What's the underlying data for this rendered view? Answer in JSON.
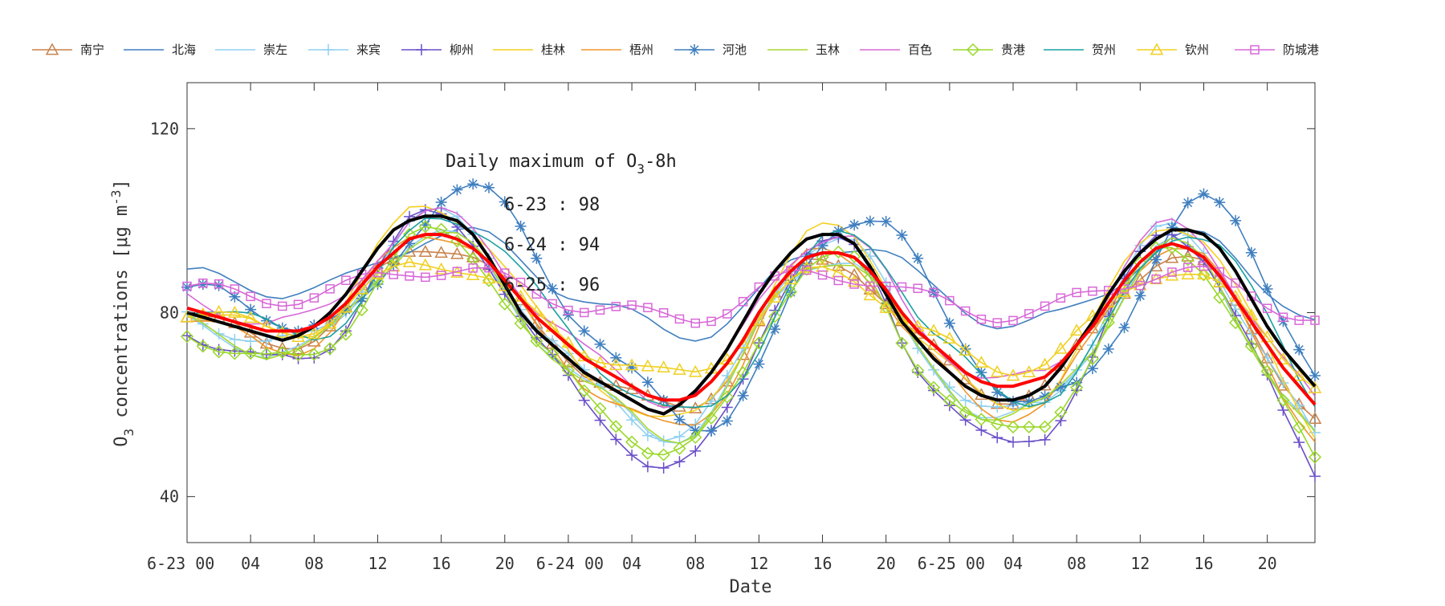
{
  "chart_data": {
    "type": "line",
    "xlabel": "Date",
    "ylabel": "O3 concentrations [μg m-3]",
    "ylabel_parts": {
      "o": "O",
      "sub": "3",
      "main": " concentrations [",
      "mu": "μ",
      "unit": "g m",
      "sup": "-3",
      "close": "]"
    },
    "xlim": [
      0,
      71
    ],
    "ylim": [
      30,
      130
    ],
    "yticks": [
      40,
      80,
      120
    ],
    "yticklabels": [
      "40",
      "80",
      "120"
    ],
    "xticks": [
      0,
      4,
      8,
      12,
      16,
      20,
      24,
      28,
      32,
      36,
      40,
      44,
      48,
      52,
      56,
      60,
      64,
      68,
      72
    ],
    "xtick_labels": [
      {
        "x": 0,
        "label": "6-23 00"
      },
      {
        "x": 4,
        "label": "04"
      },
      {
        "x": 8,
        "label": "08"
      },
      {
        "x": 12,
        "label": "12"
      },
      {
        "x": 16,
        "label": "16"
      },
      {
        "x": 20,
        "label": "20"
      },
      {
        "x": 24,
        "label": "6-24 00"
      },
      {
        "x": 28,
        "label": "04"
      },
      {
        "x": 32,
        "label": "08"
      },
      {
        "x": 36,
        "label": "12"
      },
      {
        "x": 40,
        "label": "16"
      },
      {
        "x": 44,
        "label": "20"
      },
      {
        "x": 48,
        "label": "6-25 00"
      },
      {
        "x": 52,
        "label": "04"
      },
      {
        "x": 56,
        "label": "08"
      },
      {
        "x": 60,
        "label": "12"
      },
      {
        "x": 64,
        "label": "16"
      },
      {
        "x": 68,
        "label": "20"
      }
    ],
    "annotation": {
      "title_main": "Daily maximum of O",
      "title_sub": "3",
      "title_tail": "-8h",
      "lines": [
        "6-23 : 98",
        "6-24 : 94",
        "6-25 : 96"
      ]
    },
    "legend_position": "top",
    "grid": false,
    "series": [
      {
        "name": "南宁",
        "color": "#c8824a",
        "marker": "triangle",
        "base": 1.0,
        "phase": 0,
        "amp": 1.0,
        "offset": -2
      },
      {
        "name": "北海",
        "color": "#3f7fbf",
        "marker": "none",
        "base": 0.6,
        "phase": 1,
        "amp": 0.6,
        "offset": 8
      },
      {
        "name": "崇左",
        "color": "#8fd0f0",
        "marker": "none",
        "base": 0.9,
        "phase": 0,
        "amp": 1.2,
        "offset": -4
      },
      {
        "name": "来宾",
        "color": "#8fd0f0",
        "marker": "plus",
        "base": 1.2,
        "phase": 0,
        "amp": 1.3,
        "offset": -2
      },
      {
        "name": "柳州",
        "color": "#6a4fc8",
        "marker": "plus",
        "base": 1.3,
        "phase": 0,
        "amp": 1.5,
        "offset": -6
      },
      {
        "name": "桂林",
        "color": "#f5d020",
        "marker": "none",
        "base": 1.2,
        "phase": 0,
        "amp": 1.3,
        "offset": 0
      },
      {
        "name": "梧州",
        "color": "#f0952a",
        "marker": "none",
        "base": 1.1,
        "phase": 0,
        "amp": 1.2,
        "offset": -3
      },
      {
        "name": "河池",
        "color": "#3f7fbf",
        "marker": "asterisk",
        "base": 1.0,
        "phase": 2,
        "amp": 1.4,
        "offset": 2
      },
      {
        "name": "玉林",
        "color": "#a8d830",
        "marker": "none",
        "base": 1.0,
        "phase": 0,
        "amp": 1.2,
        "offset": -4
      },
      {
        "name": "百色",
        "color": "#d868d8",
        "marker": "none",
        "base": 1.0,
        "phase": 0,
        "amp": 1.1,
        "offset": 2
      },
      {
        "name": "贵港",
        "color": "#98d828",
        "marker": "diamond",
        "base": 1.1,
        "phase": 0,
        "amp": 1.3,
        "offset": -6
      },
      {
        "name": "贺州",
        "color": "#1aa0a0",
        "marker": "none",
        "base": 1.0,
        "phase": 1,
        "amp": 1.2,
        "offset": 0
      },
      {
        "name": "钦州",
        "color": "#f0d020",
        "marker": "triangle",
        "base": 0.7,
        "phase": 0,
        "amp": 0.7,
        "offset": 0
      },
      {
        "name": "防城港",
        "color": "#d868d8",
        "marker": "square",
        "base": 0.3,
        "phase": 0,
        "amp": 0.3,
        "offset": 6
      }
    ],
    "mean_series": {
      "color": "#000000",
      "values": [
        80,
        79,
        78,
        77,
        76,
        75,
        74,
        75,
        77,
        80,
        84,
        89,
        94,
        98,
        100,
        101,
        101,
        100,
        97,
        92,
        86,
        80,
        76,
        73,
        70,
        67,
        65,
        63,
        61,
        59,
        58,
        60,
        63,
        67,
        72,
        78,
        84,
        89,
        93,
        96,
        97,
        97,
        95,
        90,
        84,
        78,
        74,
        70,
        67,
        64,
        62,
        61,
        61,
        62,
        64,
        68,
        73,
        78,
        84,
        89,
        93,
        96,
        98,
        98,
        97,
        94,
        89,
        83,
        77,
        72,
        68,
        64
      ]
    },
    "regional_series": {
      "color": "#ff0000",
      "values": [
        81,
        80,
        79,
        78,
        77,
        76,
        76,
        76,
        77,
        79,
        82,
        86,
        90,
        93,
        96,
        97,
        97,
        96,
        94,
        91,
        87,
        83,
        79,
        76,
        73,
        70,
        68,
        66,
        64,
        62,
        61,
        61,
        62,
        65,
        69,
        74,
        80,
        85,
        89,
        92,
        93,
        93,
        92,
        89,
        85,
        80,
        76,
        73,
        70,
        67,
        65,
        64,
        64,
        65,
        66,
        69,
        73,
        77,
        82,
        87,
        91,
        94,
        95,
        94,
        92,
        88,
        83,
        78,
        73,
        68,
        64,
        60
      ]
    }
  }
}
